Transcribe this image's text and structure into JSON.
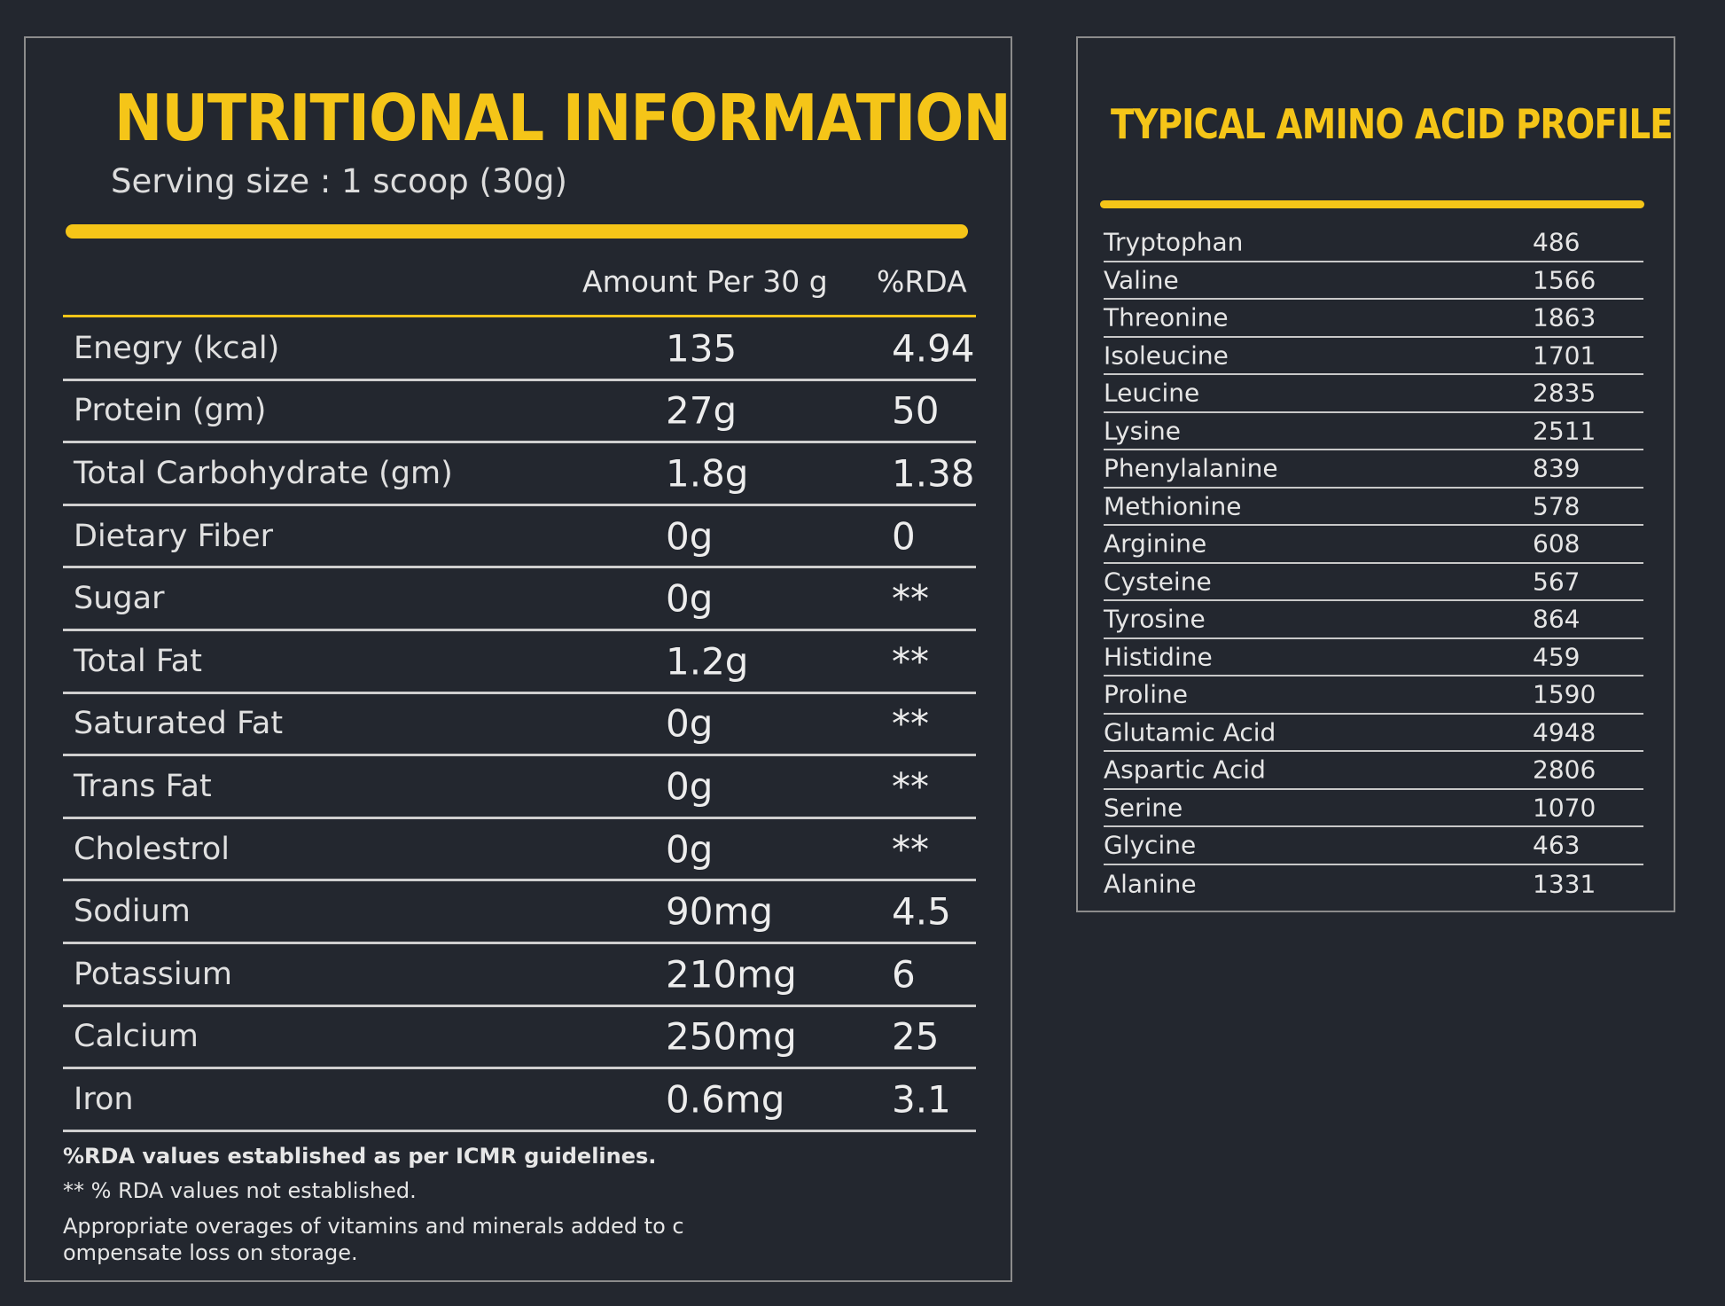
{
  "nutrition": {
    "title": "NUTRITIONAL INFORMATION",
    "serving": "Serving size : 1 scoop (30g)",
    "columns": {
      "amount": "Amount Per 30 g",
      "rda": "%RDA"
    },
    "rows": [
      {
        "name": "Enegry (kcal)",
        "amount": "135",
        "rda": "4.94"
      },
      {
        "name": "Protein (gm)",
        "amount": "27g",
        "rda": "50"
      },
      {
        "name": "Total Carbohydrate (gm)",
        "amount": "1.8g",
        "rda": "1.38"
      },
      {
        "name": "Dietary Fiber",
        "amount": "0g",
        "rda": "0"
      },
      {
        "name": "Sugar",
        "amount": "0g",
        "rda": "**"
      },
      {
        "name": "Total Fat",
        "amount": "1.2g",
        "rda": "**"
      },
      {
        "name": "Saturated Fat",
        "amount": "0g",
        "rda": "**"
      },
      {
        "name": "Trans Fat",
        "amount": "0g",
        "rda": "**"
      },
      {
        "name": "Cholestrol",
        "amount": "0g",
        "rda": "**"
      },
      {
        "name": "Sodium",
        "amount": "90mg",
        "rda": "4.5"
      },
      {
        "name": "Potassium",
        "amount": "210mg",
        "rda": "6"
      },
      {
        "name": "Calcium",
        "amount": "250mg",
        "rda": "25"
      },
      {
        "name": "Iron",
        "amount": "0.6mg",
        "rda": "3.1"
      }
    ],
    "notes": {
      "icmr": "%RDA values established as per ICMR guidelines.",
      "not_established": "** % RDA values not established.",
      "overages": "Appropriate overages of vitamins and minerals added to c ompensate loss on storage."
    }
  },
  "amino": {
    "title": "TYPICAL AMINO ACID PROFILE",
    "rows": [
      {
        "name": "Tryptophan",
        "value": "486"
      },
      {
        "name": "Valine",
        "value": "1566"
      },
      {
        "name": "Threonine",
        "value": "1863"
      },
      {
        "name": "Isoleucine",
        "value": "1701"
      },
      {
        "name": "Leucine",
        "value": "2835"
      },
      {
        "name": "Lysine",
        "value": "2511"
      },
      {
        "name": "Phenylalanine",
        "value": "839"
      },
      {
        "name": "Methionine",
        "value": "578"
      },
      {
        "name": "Arginine",
        "value": "608"
      },
      {
        "name": "Cysteine",
        "value": "567"
      },
      {
        "name": "Tyrosine",
        "value": "864"
      },
      {
        "name": "Histidine",
        "value": "459"
      },
      {
        "name": "Proline",
        "value": "1590"
      },
      {
        "name": "Glutamic Acid",
        "value": "4948"
      },
      {
        "name": "Aspartic Acid",
        "value": "2806"
      },
      {
        "name": "Serine",
        "value": "1070"
      },
      {
        "name": "Glycine",
        "value": "463"
      },
      {
        "name": "Alanine",
        "value": "1331"
      }
    ]
  },
  "colors": {
    "background": "#23272f",
    "accent": "#f5c518",
    "text": "#e6e6e6",
    "border": "#8c8c8c"
  }
}
